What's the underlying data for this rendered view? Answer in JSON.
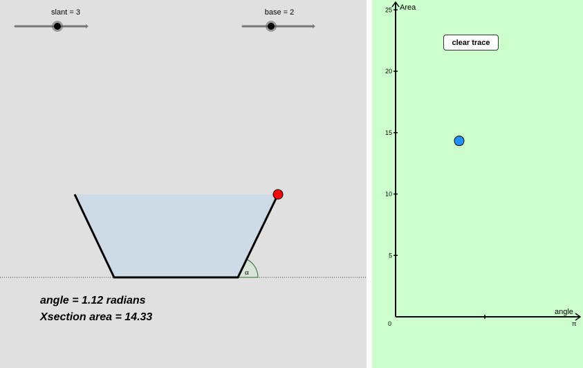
{
  "sliders": {
    "slant": {
      "label": "slant = 3",
      "value": 3
    },
    "base": {
      "label": "base = 2",
      "value": 2
    }
  },
  "diagram": {
    "angle_symbol": "α",
    "angle_text": "angle = 1.12 radians",
    "area_text": "Xsection area = 14.33"
  },
  "graph": {
    "button_label": "clear trace",
    "x_axis_label": "angle",
    "y_axis_label": "Area",
    "origin_label": "0",
    "x_end_label": "π",
    "y_tick_labels": [
      "5",
      "10",
      "15",
      "20",
      "25"
    ],
    "point": {
      "angle": 1.12,
      "area": 14.33
    }
  },
  "colors": {
    "left_bg": "#e0e0e0",
    "right_bg": "#ccffcc",
    "water": "#cddbe6",
    "point_blue": "#1e90ff",
    "point_red": "#ff0000"
  }
}
